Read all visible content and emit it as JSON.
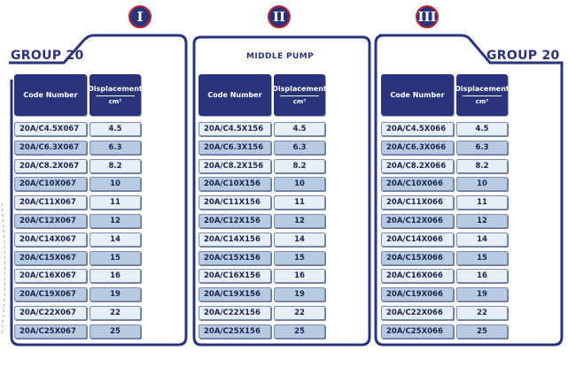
{
  "sections": [
    {
      "numeral": "I",
      "title": "GROUP 20",
      "code_header": "Code Number",
      "disp_header": "Displacement",
      "disp_unit": "cm³",
      "rows": [
        {
          "code": "20A/C4.5X067",
          "disp": "4.5"
        },
        {
          "code": "20A/C6.3X067",
          "disp": "6.3"
        },
        {
          "code": "20A/C8.2X067",
          "disp": "8.2"
        },
        {
          "code": "20A/C10X067",
          "disp": "10"
        },
        {
          "code": "20A/C11X067",
          "disp": "11"
        },
        {
          "code": "20A/C12X067",
          "disp": "12"
        },
        {
          "code": "20A/C14X067",
          "disp": "14"
        },
        {
          "code": "20A/C15X067",
          "disp": "15"
        },
        {
          "code": "20A/C16X067",
          "disp": "16"
        },
        {
          "code": "20A/C19X067",
          "disp": "19"
        },
        {
          "code": "20A/C22X067",
          "disp": "22"
        },
        {
          "code": "20A/C25X067",
          "disp": "25"
        }
      ]
    },
    {
      "numeral": "II",
      "title": "MIDDLE PUMP",
      "code_header": "Code Number",
      "disp_header": "Displacement",
      "disp_unit": "cm³",
      "rows": [
        {
          "code": "20A/C4.5X156",
          "disp": "4.5"
        },
        {
          "code": "20A/C6.3X156",
          "disp": "6.3"
        },
        {
          "code": "20A/C8.2X156",
          "disp": "8.2"
        },
        {
          "code": "20A/C10X156",
          "disp": "10"
        },
        {
          "code": "20A/C11X156",
          "disp": "11"
        },
        {
          "code": "20A/C12X156",
          "disp": "12"
        },
        {
          "code": "20A/C14X156",
          "disp": "14"
        },
        {
          "code": "20A/C15X156",
          "disp": "15"
        },
        {
          "code": "20A/C16X156",
          "disp": "16"
        },
        {
          "code": "20A/C19X156",
          "disp": "19"
        },
        {
          "code": "20A/C22X156",
          "disp": "22"
        },
        {
          "code": "20A/C25X156",
          "disp": "25"
        }
      ]
    },
    {
      "numeral": "III",
      "title": "GROUP 20",
      "code_header": "Code Number",
      "disp_header": "Displacement",
      "disp_unit": "cm³",
      "rows": [
        {
          "code": "20A/C4.5X066",
          "disp": "4.5"
        },
        {
          "code": "20A/C6.3X066",
          "disp": "6.3"
        },
        {
          "code": "20A/C8.2X066",
          "disp": "8.2"
        },
        {
          "code": "20A/C10X066",
          "disp": "10"
        },
        {
          "code": "20A/C11X066",
          "disp": "11"
        },
        {
          "code": "20A/C12X066",
          "disp": "12"
        },
        {
          "code": "20A/C14X066",
          "disp": "14"
        },
        {
          "code": "20A/C15X066",
          "disp": "15"
        },
        {
          "code": "20A/C16X066",
          "disp": "16"
        },
        {
          "code": "20A/C19X066",
          "disp": "19"
        },
        {
          "code": "20A/C22X066",
          "disp": "22"
        },
        {
          "code": "20A/C25X066",
          "disp": "25"
        }
      ]
    }
  ],
  "colors": {
    "navy": "#2a347c",
    "numeral_ring": "#c0252e",
    "row_light": "#e6eef8",
    "row_dark": "#b7cbe0"
  }
}
